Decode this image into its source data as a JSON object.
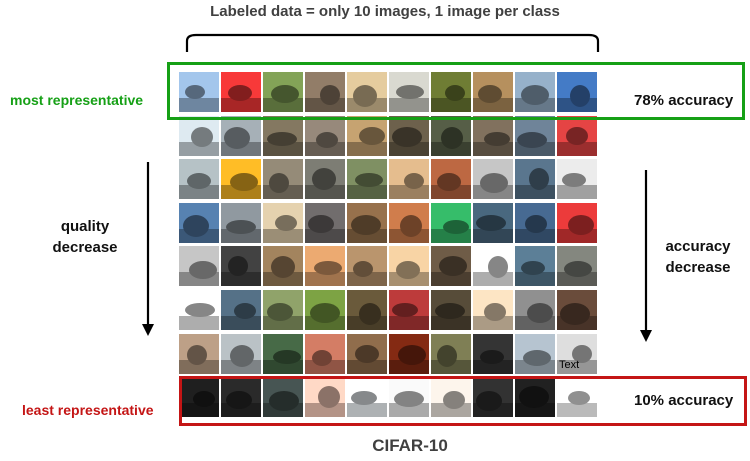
{
  "header": {
    "text": "Labeled data = only 10 images, 1 image per class"
  },
  "labels": {
    "most_representative": "most representative",
    "least_representative": "least representative",
    "quality_decrease": [
      "quality",
      "decrease"
    ],
    "accuracy_decrease": [
      "accuracy",
      "decrease"
    ],
    "top_accuracy": "78% accuracy",
    "bottom_accuracy": "10% accuracy",
    "dataset": "CIFAR-10"
  },
  "grid": {
    "rows": 8,
    "columns": 10,
    "cell_text": {
      "row": 6,
      "col": 9,
      "text": "Text"
    },
    "palette": [
      [
        "#8aa8c8",
        "#d23030",
        "#6f8a4a",
        "#7c6a58",
        "#c2ad86",
        "#b8b8b0",
        "#5e6a2c",
        "#9a7a50",
        "#7f96ab",
        "#3a68a8"
      ],
      [
        "#bcc6cc",
        "#8d959b",
        "#706652",
        "#807468",
        "#a88a60",
        "#5c5240",
        "#49503c",
        "#6d6050",
        "#5e7082",
        "#c23a3a"
      ],
      [
        "#9aa4a8",
        "#d8a020",
        "#7e7666",
        "#6a6a62",
        "#6c7a54",
        "#c2a078",
        "#a05838",
        "#a8a8a8",
        "#4c6478",
        "#c8c8c8"
      ],
      [
        "#4a6e96",
        "#7a8288",
        "#c2b294",
        "#605c5c",
        "#806040",
        "#b06a40",
        "#2ea05a",
        "#3e586c",
        "#3c5a7c",
        "#c83232"
      ],
      [
        "#a8a8a8",
        "#383838",
        "#8a7050",
        "#c89060",
        "#9e7e5c",
        "#d2b48c",
        "#5e4e3c",
        "#d8d8d8",
        "#4e6c80",
        "#70726c"
      ],
      [
        "#d8d8d8",
        "#486072",
        "#7a8a5a",
        "#6a8a3a",
        "#5a4c32",
        "#a03232",
        "#4a4030",
        "#d6c2a6",
        "#7a7a7a",
        "#5a4032"
      ],
      [
        "#a08872",
        "#9ea4a8",
        "#3c5a3c",
        "#b46a56",
        "#7a5c40",
        "#702410",
        "#6c6c48",
        "#2c2c2c",
        "#9aa6b0",
        "#bcbcbc"
      ],
      [
        "#1a1a1a",
        "#242424",
        "#3c4846",
        "#e0b8a8",
        "#d8dde0",
        "#d4d4d4",
        "#d6d0c8",
        "#2a2a2a",
        "#1c1c1c",
        "#e8e8e8"
      ]
    ]
  }
}
